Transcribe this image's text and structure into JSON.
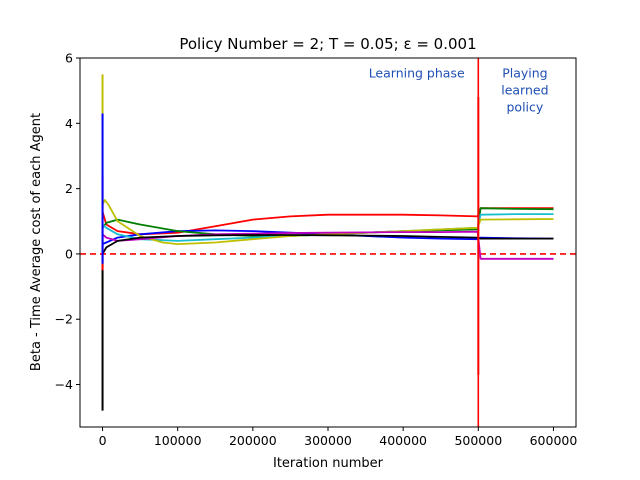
{
  "chart_data": {
    "type": "line",
    "title": "Policy Number = 2; T = 0.05; ε = 0.001",
    "xlabel": "Iteration number",
    "ylabel": "Beta - Time Average cost of each Agent",
    "xlim": [
      -30000,
      630000
    ],
    "ylim": [
      -5.3,
      6
    ],
    "xticks": [
      0,
      100000,
      200000,
      300000,
      400000,
      500000,
      600000
    ],
    "xtick_labels": [
      "0",
      "100000",
      "200000",
      "300000",
      "400000",
      "500000",
      "600000"
    ],
    "yticks": [
      -4,
      -2,
      0,
      2,
      4,
      6
    ],
    "ytick_labels": [
      "−4",
      "−2",
      "0",
      "2",
      "4",
      "6"
    ],
    "grid": false,
    "annotations": [
      {
        "text": "Learning phase",
        "lines": [
          "Learning phase"
        ],
        "x": 418000,
        "y": 5.4
      },
      {
        "text": "Playing learned policy",
        "lines": [
          "Playing",
          "learned",
          "policy"
        ],
        "x": 562000,
        "y": 5.4
      }
    ],
    "reference_lines": [
      {
        "kind": "horizontal",
        "y": 0,
        "color": "#ff0000",
        "style": "dashed"
      },
      {
        "kind": "vertical",
        "x": 500000,
        "color": "#ff0000",
        "style": "solid"
      }
    ],
    "series": [
      {
        "color": "#ff0000",
        "x": [
          0,
          5000,
          20000,
          50000,
          100000,
          150000,
          200000,
          250000,
          300000,
          350000,
          400000,
          450000,
          499000,
          503000,
          550000,
          600000
        ],
        "y": [
          1.3,
          0.9,
          0.7,
          0.6,
          0.65,
          0.85,
          1.05,
          1.15,
          1.2,
          1.2,
          1.2,
          1.18,
          1.15,
          1.4,
          1.4,
          1.4
        ]
      },
      {
        "color": "#0000ff",
        "x": [
          0,
          5000,
          20000,
          50000,
          100000,
          150000,
          200000,
          250000,
          300000,
          350000,
          400000,
          450000,
          499000,
          503000,
          550000,
          600000
        ],
        "y": [
          0.3,
          0.35,
          0.5,
          0.6,
          0.7,
          0.72,
          0.7,
          0.65,
          0.6,
          0.55,
          0.5,
          0.47,
          0.45,
          0.5,
          0.48,
          0.47
        ]
      },
      {
        "color": "#008000",
        "x": [
          0,
          5000,
          20000,
          50000,
          100000,
          150000,
          200000,
          250000,
          300000,
          350000,
          400000,
          450000,
          499000,
          503000,
          550000,
          600000
        ],
        "y": [
          0.8,
          0.95,
          1.05,
          0.9,
          0.7,
          0.6,
          0.55,
          0.55,
          0.6,
          0.65,
          0.7,
          0.72,
          0.75,
          1.4,
          1.38,
          1.37
        ]
      },
      {
        "color": "#17becf",
        "x": [
          0,
          5000,
          20000,
          50000,
          100000,
          150000,
          200000,
          250000,
          300000,
          350000,
          400000,
          450000,
          499000,
          503000,
          550000,
          600000
        ],
        "y": [
          0.9,
          0.8,
          0.6,
          0.45,
          0.4,
          0.45,
          0.5,
          0.55,
          0.6,
          0.65,
          0.7,
          0.75,
          0.8,
          1.2,
          1.22,
          1.22
        ]
      },
      {
        "color": "#bfbf00",
        "x": [
          0,
          3000,
          8000,
          20000,
          50000,
          80000,
          100000,
          150000,
          200000,
          250000,
          300000,
          350000,
          400000,
          450000,
          499000,
          503000,
          550000,
          600000
        ],
        "y": [
          1.5,
          1.65,
          1.5,
          1.0,
          0.55,
          0.35,
          0.3,
          0.35,
          0.45,
          0.55,
          0.6,
          0.65,
          0.7,
          0.75,
          0.8,
          1.05,
          1.06,
          1.07
        ]
      },
      {
        "color": "#bf00bf",
        "x": [
          0,
          5000,
          20000,
          50000,
          100000,
          150000,
          200000,
          250000,
          300000,
          350000,
          400000,
          450000,
          499000,
          503000,
          550000,
          600000
        ],
        "y": [
          0.6,
          0.5,
          0.4,
          0.45,
          0.55,
          0.6,
          0.62,
          0.64,
          0.65,
          0.66,
          0.67,
          0.67,
          0.68,
          -0.15,
          -0.15,
          -0.15
        ]
      },
      {
        "color": "#000000",
        "x": [
          0,
          5000,
          20000,
          50000,
          100000,
          150000,
          200000,
          250000,
          300000,
          350000,
          400000,
          450000,
          499000,
          503000,
          550000,
          600000
        ],
        "y": [
          0.0,
          0.2,
          0.4,
          0.5,
          0.55,
          0.57,
          0.58,
          0.58,
          0.57,
          0.56,
          0.55,
          0.52,
          0.5,
          0.47,
          0.47,
          0.47
        ]
      }
    ],
    "spikes": [
      {
        "color": "#bfbf00",
        "x": 0,
        "y0": -1.0,
        "y1": 5.5
      },
      {
        "color": "#000000",
        "x": 0,
        "y0": -4.8,
        "y1": 0.5
      },
      {
        "color": "#ff0000",
        "x": 0,
        "y0": -0.5,
        "y1": 2.4
      },
      {
        "color": "#0000ff",
        "x": 0,
        "y0": -0.3,
        "y1": 4.3
      },
      {
        "color": "#ff0000",
        "x": 500000,
        "y0": -3.7,
        "y1": 4.8
      }
    ]
  }
}
